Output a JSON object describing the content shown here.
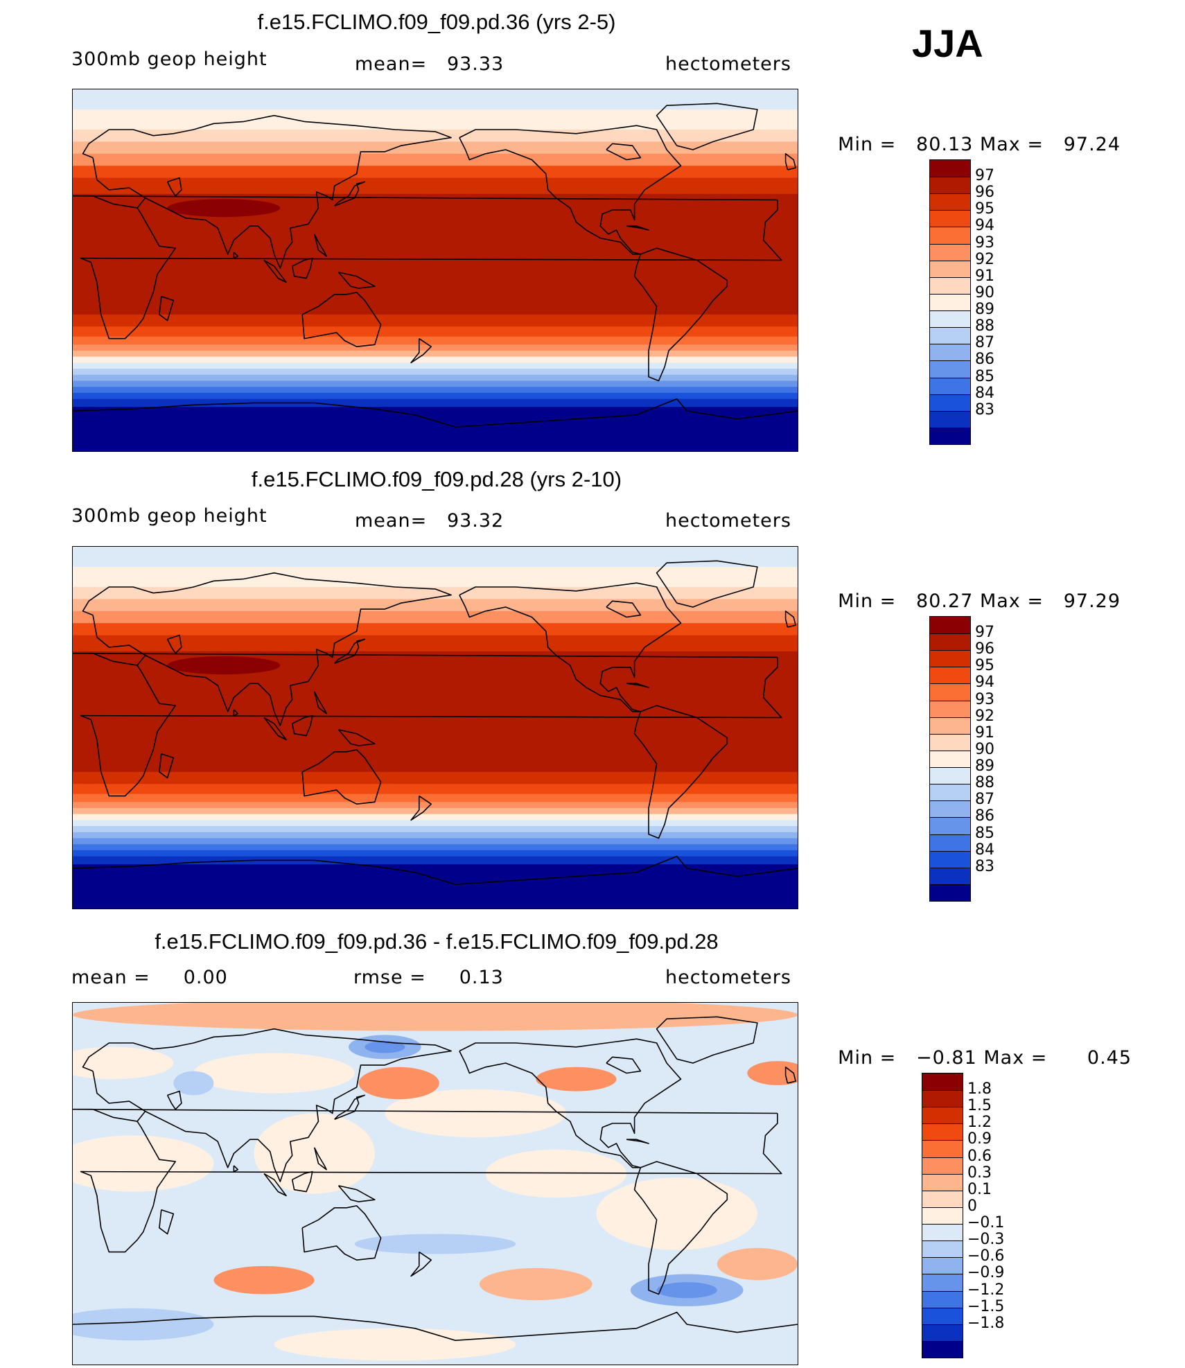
{
  "season": "JJA",
  "panels": [
    {
      "title": "f.e15.FCLIMO.f09_f09.pd.36 (yrs 2-5)",
      "left_label": "300mb geop height",
      "center_label": "mean=   93.33",
      "right_label": "hectometers",
      "min_label": "Min =",
      "min_value": "80.13",
      "max_label": "Max =",
      "max_value": "97.24",
      "colorbar": {
        "labels": [
          "97",
          "96",
          "95",
          "94",
          "93",
          "92",
          "91",
          "90",
          "89",
          "88",
          "87",
          "86",
          "85",
          "84",
          "83"
        ],
        "colors": [
          "#8b0000",
          "#b01a00",
          "#d33000",
          "#f04a10",
          "#fb6f35",
          "#fc9060",
          "#fdb58e",
          "#fed9c0",
          "#fff0e2",
          "#dceaf8",
          "#b5d0f4",
          "#8fb3ee",
          "#6594ea",
          "#3e74e6",
          "#1a52dc",
          "#0a31c0",
          "#00008b"
        ]
      },
      "map": {
        "field": "300mb geop height",
        "bands": [
          {
            "lat_from": 90,
            "lat_to": 80,
            "color": "#dceaf8"
          },
          {
            "lat_from": 80,
            "lat_to": 70,
            "color": "#fff0e2"
          },
          {
            "lat_from": 70,
            "lat_to": 64,
            "color": "#fed9c0"
          },
          {
            "lat_from": 64,
            "lat_to": 58,
            "color": "#fdb58e"
          },
          {
            "lat_from": 58,
            "lat_to": 52,
            "color": "#fc9060"
          },
          {
            "lat_from": 52,
            "lat_to": 46,
            "color": "#f04a10"
          },
          {
            "lat_from": 46,
            "lat_to": 38,
            "color": "#d33000"
          },
          {
            "lat_from": 38,
            "lat_to": -22,
            "color": "#b01a00"
          },
          {
            "lat_from": -22,
            "lat_to": -28,
            "color": "#d33000"
          },
          {
            "lat_from": -28,
            "lat_to": -33,
            "color": "#f04a10"
          },
          {
            "lat_from": -33,
            "lat_to": -37,
            "color": "#fb6f35"
          },
          {
            "lat_from": -37,
            "lat_to": -40,
            "color": "#fc9060"
          },
          {
            "lat_from": -40,
            "lat_to": -43,
            "color": "#fdb58e"
          },
          {
            "lat_from": -43,
            "lat_to": -46,
            "color": "#fff0e2"
          },
          {
            "lat_from": -46,
            "lat_to": -49,
            "color": "#dceaf8"
          },
          {
            "lat_from": -49,
            "lat_to": -52,
            "color": "#b5d0f4"
          },
          {
            "lat_from": -52,
            "lat_to": -55,
            "color": "#8fb3ee"
          },
          {
            "lat_from": -55,
            "lat_to": -58,
            "color": "#6594ea"
          },
          {
            "lat_from": -58,
            "lat_to": -61,
            "color": "#3e74e6"
          },
          {
            "lat_from": -61,
            "lat_to": -64,
            "color": "#1a52dc"
          },
          {
            "lat_from": -64,
            "lat_to": -68,
            "color": "#0a31c0"
          },
          {
            "lat_from": -68,
            "lat_to": -90,
            "color": "#00008b"
          }
        ],
        "maximum": {
          "lon": 75,
          "lat": 31,
          "color": "#8b0000"
        }
      }
    },
    {
      "title": "f.e15.FCLIMO.f09_f09.pd.28 (yrs 2-10)",
      "left_label": "300mb geop height",
      "center_label": "mean=   93.32",
      "right_label": "hectometers",
      "min_label": "Min =",
      "min_value": "80.27",
      "max_label": "Max =",
      "max_value": "97.29",
      "colorbar": {
        "labels": [
          "97",
          "96",
          "95",
          "94",
          "93",
          "92",
          "91",
          "90",
          "89",
          "88",
          "87",
          "86",
          "85",
          "84",
          "83"
        ],
        "colors": [
          "#8b0000",
          "#b01a00",
          "#d33000",
          "#f04a10",
          "#fb6f35",
          "#fc9060",
          "#fdb58e",
          "#fed9c0",
          "#fff0e2",
          "#dceaf8",
          "#b5d0f4",
          "#8fb3ee",
          "#6594ea",
          "#3e74e6",
          "#1a52dc",
          "#0a31c0",
          "#00008b"
        ]
      },
      "map": {
        "field": "300mb geop height",
        "bands": [
          {
            "lat_from": 90,
            "lat_to": 80,
            "color": "#dceaf8"
          },
          {
            "lat_from": 80,
            "lat_to": 70,
            "color": "#fff0e2"
          },
          {
            "lat_from": 70,
            "lat_to": 64,
            "color": "#fed9c0"
          },
          {
            "lat_from": 64,
            "lat_to": 58,
            "color": "#fdb58e"
          },
          {
            "lat_from": 58,
            "lat_to": 52,
            "color": "#fc9060"
          },
          {
            "lat_from": 52,
            "lat_to": 46,
            "color": "#f04a10"
          },
          {
            "lat_from": 46,
            "lat_to": 38,
            "color": "#d33000"
          },
          {
            "lat_from": 38,
            "lat_to": -22,
            "color": "#b01a00"
          },
          {
            "lat_from": -22,
            "lat_to": -28,
            "color": "#d33000"
          },
          {
            "lat_from": -28,
            "lat_to": -33,
            "color": "#f04a10"
          },
          {
            "lat_from": -33,
            "lat_to": -37,
            "color": "#fb6f35"
          },
          {
            "lat_from": -37,
            "lat_to": -40,
            "color": "#fc9060"
          },
          {
            "lat_from": -40,
            "lat_to": -43,
            "color": "#fdb58e"
          },
          {
            "lat_from": -43,
            "lat_to": -46,
            "color": "#fff0e2"
          },
          {
            "lat_from": -46,
            "lat_to": -49,
            "color": "#dceaf8"
          },
          {
            "lat_from": -49,
            "lat_to": -52,
            "color": "#b5d0f4"
          },
          {
            "lat_from": -52,
            "lat_to": -55,
            "color": "#8fb3ee"
          },
          {
            "lat_from": -55,
            "lat_to": -58,
            "color": "#6594ea"
          },
          {
            "lat_from": -58,
            "lat_to": -61,
            "color": "#3e74e6"
          },
          {
            "lat_from": -61,
            "lat_to": -64,
            "color": "#1a52dc"
          },
          {
            "lat_from": -64,
            "lat_to": -68,
            "color": "#0a31c0"
          },
          {
            "lat_from": -68,
            "lat_to": -90,
            "color": "#00008b"
          }
        ],
        "maximum": {
          "lon": 75,
          "lat": 31,
          "color": "#8b0000"
        }
      }
    },
    {
      "title": "f.e15.FCLIMO.f09_f09.pd.36 - f.e15.FCLIMO.f09_f09.pd.28",
      "left_label": "mean =     0.00",
      "center_label": "rmse =     0.13",
      "right_label": "hectometers",
      "min_label": "Min =",
      "min_value": "−0.81",
      "max_label": "Max =",
      "max_value": "0.45",
      "colorbar": {
        "labels": [
          "1.8",
          "1.5",
          "1.2",
          "0.9",
          "0.6",
          "0.3",
          "0.1",
          "0",
          "−0.1",
          "−0.3",
          "−0.6",
          "−0.9",
          "−1.2",
          "−1.5",
          "−1.8"
        ],
        "colors": [
          "#8b0000",
          "#b01a00",
          "#d33000",
          "#f04a10",
          "#fb6f35",
          "#fc9060",
          "#fdb58e",
          "#fed9c0",
          "#fff0e2",
          "#dceaf8",
          "#b5d0f4",
          "#8fb3ee",
          "#6594ea",
          "#3e74e6",
          "#1a52dc",
          "#0a31c0",
          "#00008b"
        ]
      },
      "map": {
        "field": "difference",
        "background": "#dceaf8",
        "blobs": [
          {
            "lon": 180,
            "lat": 84,
            "rx": 180,
            "ry": 8,
            "color": "#fdb58e"
          },
          {
            "lon": 30,
            "lat": 10,
            "rx": 40,
            "ry": 14,
            "color": "#fff0e2"
          },
          {
            "lon": 120,
            "lat": 15,
            "rx": 30,
            "ry": 20,
            "color": "#fff0e2"
          },
          {
            "lon": 200,
            "lat": 35,
            "rx": 45,
            "ry": 12,
            "color": "#fff0e2"
          },
          {
            "lon": 240,
            "lat": 5,
            "rx": 35,
            "ry": 12,
            "color": "#fff0e2"
          },
          {
            "lon": 300,
            "lat": -15,
            "rx": 40,
            "ry": 18,
            "color": "#fff0e2"
          },
          {
            "lon": 20,
            "lat": 60,
            "rx": 30,
            "ry": 8,
            "color": "#fff0e2"
          },
          {
            "lon": 100,
            "lat": 55,
            "rx": 40,
            "ry": 10,
            "color": "#fff0e2"
          },
          {
            "lon": 162,
            "lat": 50,
            "rx": 20,
            "ry": 8,
            "color": "#fc9060"
          },
          {
            "lon": 250,
            "lat": 52,
            "rx": 20,
            "ry": 6,
            "color": "#fc9060"
          },
          {
            "lon": 350,
            "lat": 55,
            "rx": 15,
            "ry": 6,
            "color": "#fc9060"
          },
          {
            "lon": 155,
            "lat": 68,
            "rx": 18,
            "ry": 6,
            "color": "#8fb3ee"
          },
          {
            "lon": 155,
            "lat": 68,
            "rx": 10,
            "ry": 3,
            "color": "#6594ea"
          },
          {
            "lon": 60,
            "lat": 50,
            "rx": 10,
            "ry": 6,
            "color": "#b5d0f4"
          },
          {
            "lon": 180,
            "lat": -30,
            "rx": 40,
            "ry": 5,
            "color": "#b5d0f4"
          },
          {
            "lon": 95,
            "lat": -48,
            "rx": 25,
            "ry": 7,
            "color": "#fc9060"
          },
          {
            "lon": 230,
            "lat": -50,
            "rx": 28,
            "ry": 8,
            "color": "#fdb58e"
          },
          {
            "lon": 305,
            "lat": -53,
            "rx": 28,
            "ry": 8,
            "color": "#8fb3ee"
          },
          {
            "lon": 305,
            "lat": -53,
            "rx": 15,
            "ry": 4,
            "color": "#6594ea"
          },
          {
            "lon": 30,
            "lat": -70,
            "rx": 40,
            "ry": 8,
            "color": "#b5d0f4"
          },
          {
            "lon": 160,
            "lat": -80,
            "rx": 60,
            "ry": 8,
            "color": "#fff0e2"
          },
          {
            "lon": 340,
            "lat": -40,
            "rx": 20,
            "ry": 8,
            "color": "#fdb58e"
          }
        ]
      }
    }
  ]
}
